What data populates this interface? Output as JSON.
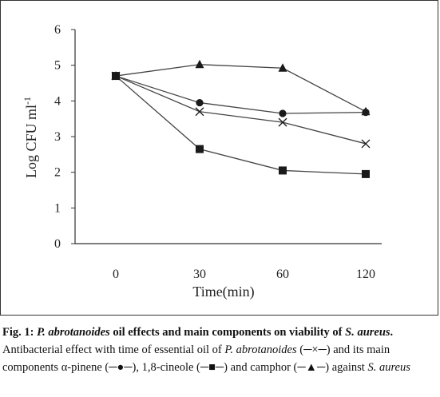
{
  "chart_data": {
    "type": "line",
    "x": [
      "0",
      "30",
      "60",
      "120"
    ],
    "xlabel": "Time(min)",
    "ylabel": "Log CFU ml",
    "ylabel_sup": "-1",
    "yticks": [
      "0",
      "1",
      "2",
      "3",
      "4",
      "5",
      "6"
    ],
    "ylim": [
      0,
      6
    ],
    "grid": false,
    "legend": "none",
    "series": [
      {
        "marker": "x",
        "values": [
          4.7,
          3.7,
          3.4,
          2.8
        ]
      },
      {
        "marker": "circle",
        "values": [
          4.7,
          3.95,
          3.65,
          3.68
        ]
      },
      {
        "marker": "square",
        "values": [
          4.7,
          2.65,
          2.05,
          1.95
        ]
      },
      {
        "marker": "triangle",
        "values": [
          4.7,
          5.02,
          4.92,
          3.7
        ]
      }
    ],
    "line_color": "#444444",
    "marker_color": "#1a1a1a"
  },
  "caption": {
    "fig_label": "Fig. 1:",
    "s1": " ",
    "p_abro": "P. abrotanoides",
    "s2": " oil effects and main components on viability of ",
    "s_aureus": "S. aureus",
    "s3": ". ",
    "n1": "Antibacterial effect with time of essential oil of ",
    "p_abro2": "P. abrotanoides",
    "n2": " (─×─) and its main components α-pinene (─●─), 1,8-cineole (─■─) and camphor (─▲─) against ",
    "s_aureus2": "S. aureus"
  }
}
